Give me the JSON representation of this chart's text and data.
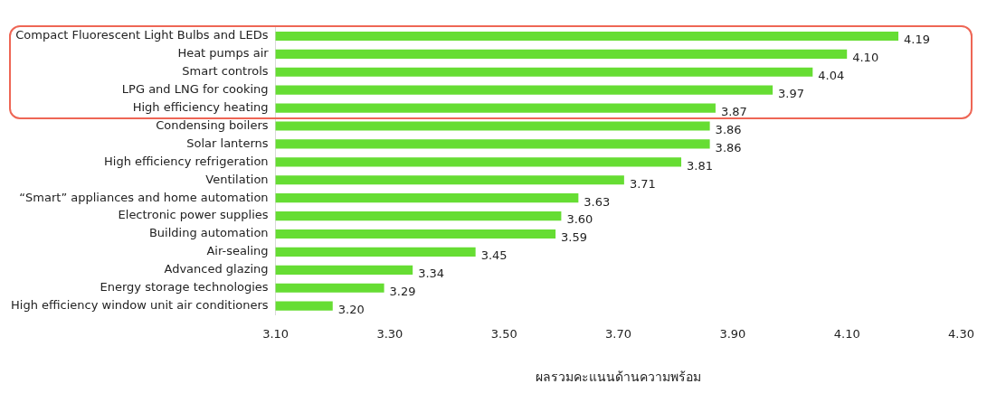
{
  "chart_data": {
    "type": "bar",
    "orientation": "horizontal",
    "xlabel": "ผลรวมคะแนนด้านความพร้อม",
    "categories": [
      "Compact Fluorescent Light Bulbs and LEDs",
      "Heat pumps air",
      "Smart controls",
      "LPG and LNG for cooking",
      "High efficiency heating",
      "Condensing boilers",
      "Solar lanterns",
      "High efficiency refrigeration",
      "Ventilation",
      "“Smart” appliances and home automation",
      "Electronic power supplies",
      "Building automation",
      "Air-sealing",
      "Advanced glazing",
      "Energy storage technologies",
      "High efficiency window unit air conditioners"
    ],
    "values": [
      4.19,
      4.1,
      4.04,
      3.97,
      3.87,
      3.86,
      3.86,
      3.81,
      3.71,
      3.63,
      3.6,
      3.59,
      3.45,
      3.34,
      3.29,
      3.2
    ],
    "value_labels": [
      "4.19",
      "4.10",
      "4.04",
      "3.97",
      "3.87",
      "3.86",
      "3.86",
      "3.81",
      "3.71",
      "3.63",
      "3.60",
      "3.59",
      "3.45",
      "3.34",
      "3.29",
      "3.20"
    ],
    "color": "#66dd33",
    "xlim": [
      3.1,
      4.3
    ],
    "xticks": [
      {
        "value": 3.1,
        "label": "3.10"
      },
      {
        "value": 3.3,
        "label": "3.30"
      },
      {
        "value": 3.5,
        "label": "3.50"
      },
      {
        "value": 3.7,
        "label": "3.70"
      },
      {
        "value": 3.9,
        "label": "3.90"
      },
      {
        "value": 4.1,
        "label": "4.10"
      },
      {
        "value": 4.3,
        "label": "4.30"
      }
    ],
    "grid": false,
    "legend": false
  }
}
